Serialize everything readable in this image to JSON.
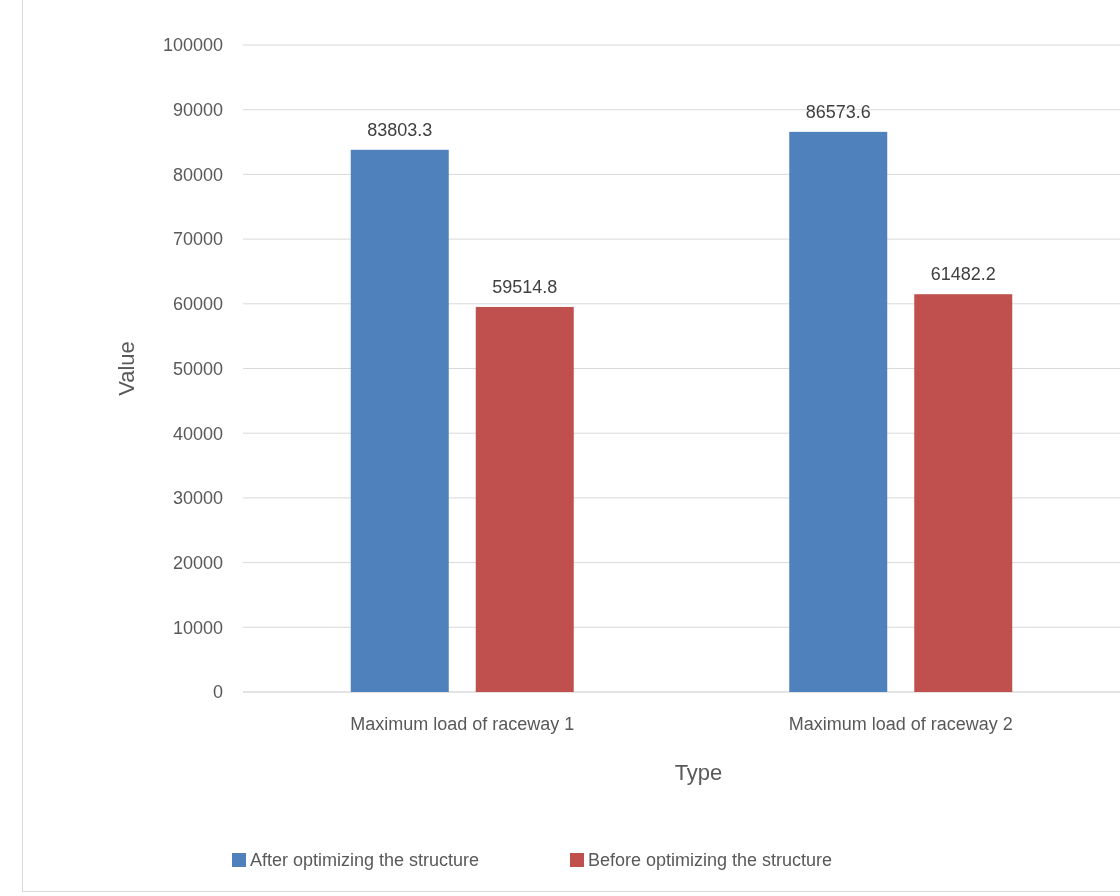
{
  "chart_data": {
    "type": "bar",
    "xlabel": "Type",
    "ylabel": "Value",
    "categories": [
      "Maximum load of raceway 1",
      "Maximum load of raceway 2"
    ],
    "series": [
      {
        "name": "After optimizing the structure",
        "color": "#4f81bd",
        "values": [
          83803.3,
          86573.6
        ]
      },
      {
        "name": "Before optimizing the structure",
        "color": "#c0504d",
        "values": [
          59514.8,
          61482.2
        ]
      }
    ],
    "ylim": [
      0,
      100000
    ],
    "yticks": [
      0,
      10000,
      20000,
      30000,
      40000,
      50000,
      60000,
      70000,
      80000,
      90000,
      100000
    ],
    "grid": "y",
    "legend": "bottom",
    "data_labels": true
  }
}
